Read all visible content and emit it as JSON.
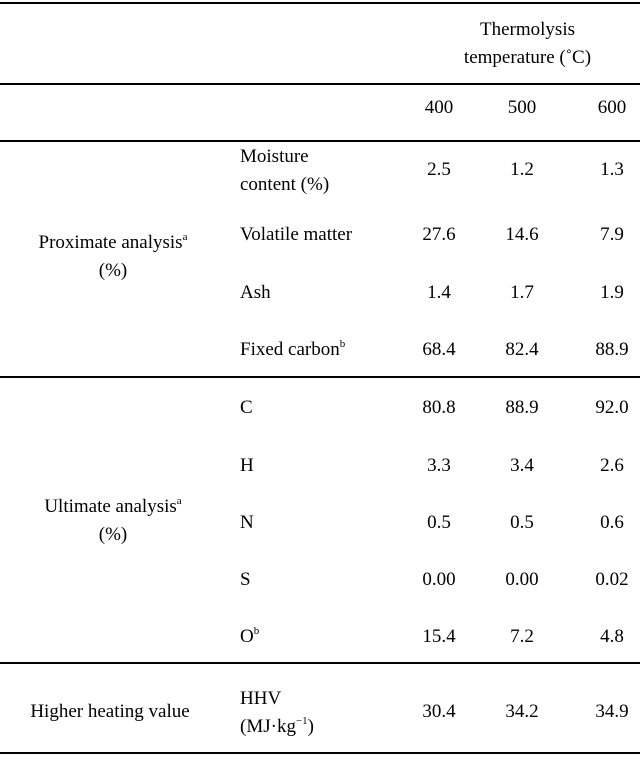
{
  "header": {
    "group_line1": "Thermolysis",
    "group_line2": "temperature (˚C)",
    "temperatures": [
      "400",
      "500",
      "600"
    ]
  },
  "sections": [
    {
      "label_line1": "Proximate analysis",
      "label_sup": "a",
      "label_line2": "(%)",
      "rows": [
        {
          "param_line1": "Moisture",
          "param_line2": "content (%)",
          "values": [
            "2.5",
            "1.2",
            "1.3"
          ]
        },
        {
          "param": "Volatile matter",
          "values": [
            "27.6",
            "14.6",
            "7.9"
          ]
        },
        {
          "param": "Ash",
          "values": [
            "1.4",
            "1.7",
            "1.9"
          ]
        },
        {
          "param": "Fixed carbon",
          "param_sup": "b",
          "values": [
            "68.4",
            "82.4",
            "88.9"
          ]
        }
      ]
    },
    {
      "label_line1": "Ultimate analysis",
      "label_sup": "a",
      "label_line2": "(%)",
      "rows": [
        {
          "param": "C",
          "values": [
            "80.8",
            "88.9",
            "92.0"
          ]
        },
        {
          "param": "H",
          "values": [
            "3.3",
            "3.4",
            "2.6"
          ]
        },
        {
          "param": "N",
          "values": [
            "0.5",
            "0.5",
            "0.6"
          ]
        },
        {
          "param": "S",
          "values": [
            "0.00",
            "0.00",
            "0.02"
          ]
        },
        {
          "param": "O",
          "param_sup": "b",
          "values": [
            "15.4",
            "7.2",
            "4.8"
          ]
        }
      ]
    },
    {
      "label": "Higher heating value",
      "rows": [
        {
          "param_line1": "HHV",
          "param_line2_pre": "(MJ·kg",
          "param_line2_sup": "−1",
          "param_line2_post": ")",
          "values": [
            "30.4",
            "34.2",
            "34.9"
          ]
        }
      ]
    }
  ]
}
